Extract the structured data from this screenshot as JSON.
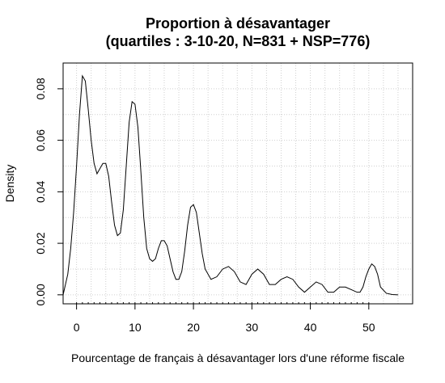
{
  "chart_data": {
    "type": "line",
    "title_line1": "Proportion à désavantager",
    "title_line2": "(quartiles : 3-10-20, N=831 + NSP=776)",
    "xlabel": "Pourcentage de français à désavantager lors d'une réforme fiscale",
    "ylabel": "Density",
    "xlim": [
      -2.3,
      57.5
    ],
    "ylim": [
      -0.0035,
      0.09
    ],
    "x_ticks": [
      0,
      10,
      20,
      30,
      40,
      50
    ],
    "x_tick_labels": [
      "0",
      "10",
      "20",
      "30",
      "40",
      "50"
    ],
    "y_ticks": [
      0.0,
      0.02,
      0.04,
      0.06,
      0.08
    ],
    "y_tick_labels": [
      "0.00",
      "0.02",
      "0.04",
      "0.06",
      "0.08"
    ],
    "grid": true,
    "grid_style": "dotted",
    "rug": true,
    "series": [
      {
        "x": [
          -2.3,
          -1.5,
          -1.0,
          -0.5,
          0.0,
          0.5,
          1.0,
          1.5,
          2.0,
          2.5,
          3.0,
          3.5,
          4.0,
          4.5,
          5.0,
          5.5,
          6.0,
          6.5,
          7.0,
          7.5,
          8.0,
          8.5,
          9.0,
          9.5,
          10.0,
          10.5,
          11.0,
          11.5,
          12.0,
          12.5,
          13.0,
          13.5,
          14.0,
          14.5,
          15.0,
          15.5,
          16.0,
          16.5,
          17.0,
          17.5,
          18.0,
          18.5,
          19.0,
          19.5,
          20.0,
          20.5,
          21.0,
          21.5,
          22.0,
          23.0,
          24.0,
          25.0,
          26.0,
          27.0,
          28.0,
          29.0,
          30.0,
          31.0,
          32.0,
          33.0,
          34.0,
          35.0,
          36.0,
          37.0,
          38.0,
          39.0,
          40.0,
          41.0,
          42.0,
          43.0,
          44.0,
          45.0,
          46.0,
          47.0,
          48.0,
          48.5,
          49.0,
          49.5,
          50.0,
          50.5,
          51.0,
          51.5,
          52.0,
          53.0,
          54.0,
          55.0
        ],
        "y": [
          0.0,
          0.008,
          0.018,
          0.032,
          0.05,
          0.07,
          0.085,
          0.083,
          0.072,
          0.06,
          0.051,
          0.047,
          0.049,
          0.051,
          0.051,
          0.046,
          0.036,
          0.027,
          0.023,
          0.024,
          0.033,
          0.05,
          0.067,
          0.075,
          0.074,
          0.065,
          0.048,
          0.03,
          0.018,
          0.014,
          0.013,
          0.014,
          0.018,
          0.021,
          0.021,
          0.019,
          0.014,
          0.009,
          0.006,
          0.006,
          0.009,
          0.017,
          0.027,
          0.034,
          0.035,
          0.032,
          0.024,
          0.016,
          0.01,
          0.006,
          0.007,
          0.01,
          0.011,
          0.009,
          0.005,
          0.004,
          0.008,
          0.01,
          0.008,
          0.004,
          0.004,
          0.006,
          0.007,
          0.006,
          0.003,
          0.001,
          0.003,
          0.005,
          0.004,
          0.001,
          0.001,
          0.003,
          0.003,
          0.002,
          0.001,
          0.001,
          0.003,
          0.007,
          0.01,
          0.012,
          0.011,
          0.008,
          0.003,
          0.0006,
          0.0001,
          0.0
        ]
      }
    ]
  }
}
